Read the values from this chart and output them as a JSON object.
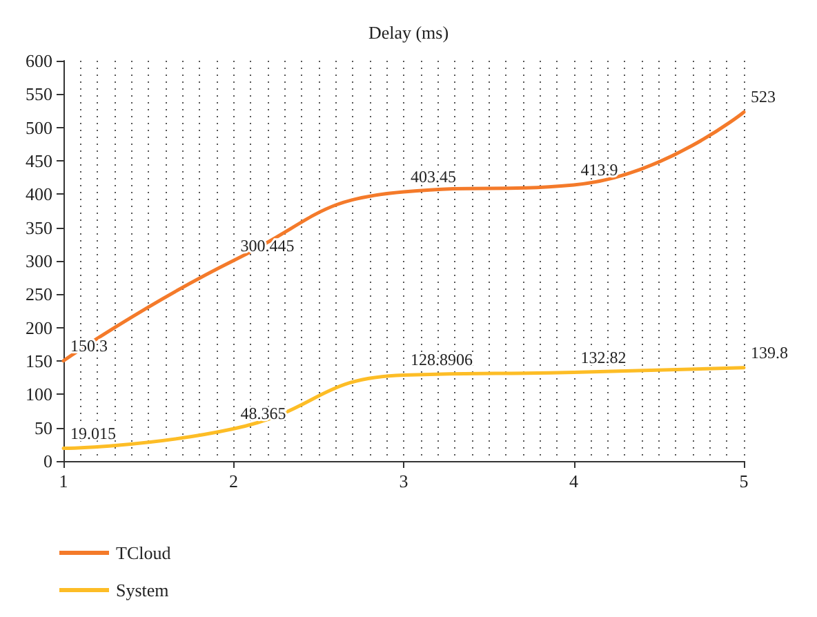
{
  "chart_data": {
    "type": "line",
    "title": "Delay (ms)",
    "x": [
      1,
      2,
      3,
      4,
      5
    ],
    "series": [
      {
        "name": "TCloud",
        "color": "#f47a2a",
        "values": [
          150.3,
          300.445,
          403.45,
          413.9,
          523
        ]
      },
      {
        "name": "System",
        "color": "#fdbd26",
        "values": [
          19.015,
          48.365,
          128.8906,
          132.82,
          139.8
        ]
      }
    ],
    "xlim": [
      1,
      5
    ],
    "xticks": [
      1,
      2,
      3,
      4,
      5
    ],
    "ylim": [
      0,
      600
    ],
    "yticks": [
      0,
      50,
      100,
      150,
      200,
      250,
      300,
      350,
      400,
      450,
      500,
      550,
      600
    ],
    "grid": "x",
    "legend": "bottom left",
    "data_labels": true,
    "marker": "none",
    "line_style": "solid"
  }
}
